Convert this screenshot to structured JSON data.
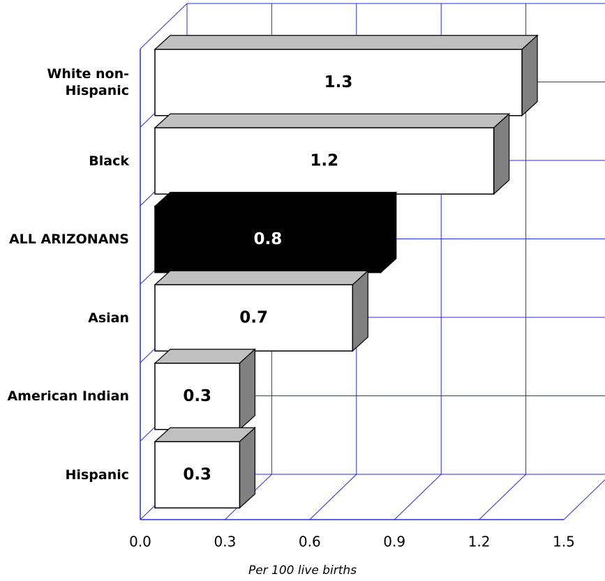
{
  "chart_data": {
    "type": "bar3d_horizontal",
    "categories": [
      "White non-Hispanic",
      "Black",
      "ALL ARIZONANS",
      "Asian",
      "American Indian",
      "Hispanic"
    ],
    "values": [
      1.3,
      1.2,
      0.8,
      0.7,
      0.3,
      0.3
    ],
    "colors": [
      "#ffffff",
      "#ffffff",
      "#000000",
      "#ffffff",
      "#ffffff",
      "#ffffff"
    ],
    "x_label": "Per 100 live births",
    "xlim": [
      0,
      1.5
    ],
    "xticks": [
      {
        "value": 0,
        "label": "0.0"
      },
      0.3,
      0.6,
      0.9,
      1.2,
      1.5
    ],
    "grid": true,
    "grid_color": "#2a2ae6"
  }
}
